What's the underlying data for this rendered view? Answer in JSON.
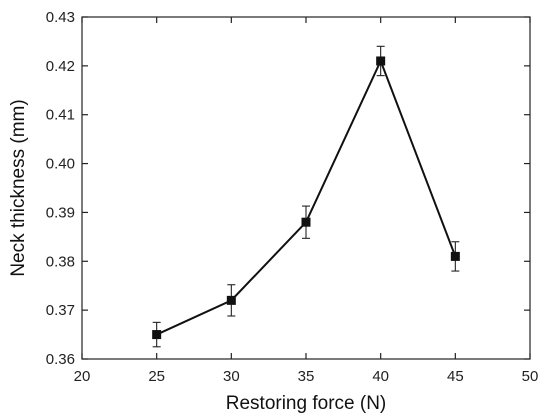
{
  "chart_data": {
    "type": "line",
    "xlabel": "Restoring force (N)",
    "ylabel": "Neck thickness (mm)",
    "xlim": [
      20,
      50
    ],
    "ylim": [
      0.36,
      0.43
    ],
    "x_ticks": [
      20,
      25,
      30,
      35,
      40,
      45,
      50
    ],
    "y_ticks": [
      0.36,
      0.37,
      0.38,
      0.39,
      0.4,
      0.41,
      0.42,
      0.43
    ],
    "x_tick_labels": [
      "20",
      "25",
      "30",
      "35",
      "40",
      "45",
      "50"
    ],
    "y_tick_labels": [
      "0.36",
      "0.37",
      "0.38",
      "0.39",
      "0.40",
      "0.41",
      "0.42",
      "0.43"
    ],
    "grid": false,
    "marker": "square",
    "series": [
      {
        "x": [
          25,
          30,
          35,
          40,
          45
        ],
        "y": [
          0.365,
          0.372,
          0.388,
          0.421,
          0.381
        ],
        "error": [
          0.0025,
          0.0032,
          0.0033,
          0.003,
          0.003
        ],
        "color": "#111111"
      }
    ]
  }
}
